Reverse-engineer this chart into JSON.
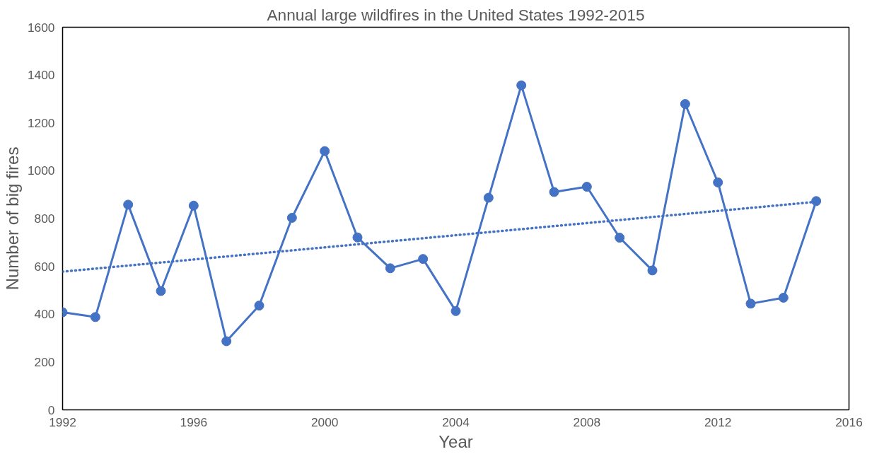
{
  "chart_data": {
    "type": "line",
    "title": "Annual large wildfires in the United States 1992-2015",
    "xlabel": "Year",
    "ylabel": "Number of big fires",
    "x": [
      1992,
      1993,
      1994,
      1995,
      1996,
      1997,
      1998,
      1999,
      2000,
      2001,
      2002,
      2003,
      2004,
      2005,
      2006,
      2007,
      2008,
      2009,
      2010,
      2011,
      2012,
      2013,
      2014,
      2015
    ],
    "series": [
      {
        "color": "#4472c4",
        "marker": "circle",
        "line_style": "solid",
        "values": [
          408,
          388,
          858,
          497,
          854,
          287,
          436,
          803,
          1082,
          721,
          592,
          631,
          413,
          887,
          1357,
          911,
          933,
          720,
          583,
          1279,
          951,
          444,
          469,
          873
        ]
      },
      {
        "type": "line",
        "color": "#4472c4",
        "marker": "none",
        "line_style": "dotted",
        "x": [
          1992,
          2015
        ],
        "values": [
          578,
          870
        ]
      }
    ],
    "xlim": [
      1992,
      2016
    ],
    "xticks": [
      1992,
      1996,
      2000,
      2004,
      2008,
      2012,
      2016
    ],
    "ylim": [
      0,
      1600
    ],
    "yticks": [
      0,
      200,
      400,
      600,
      800,
      1000,
      1200,
      1400,
      1600
    ],
    "grid": false
  }
}
